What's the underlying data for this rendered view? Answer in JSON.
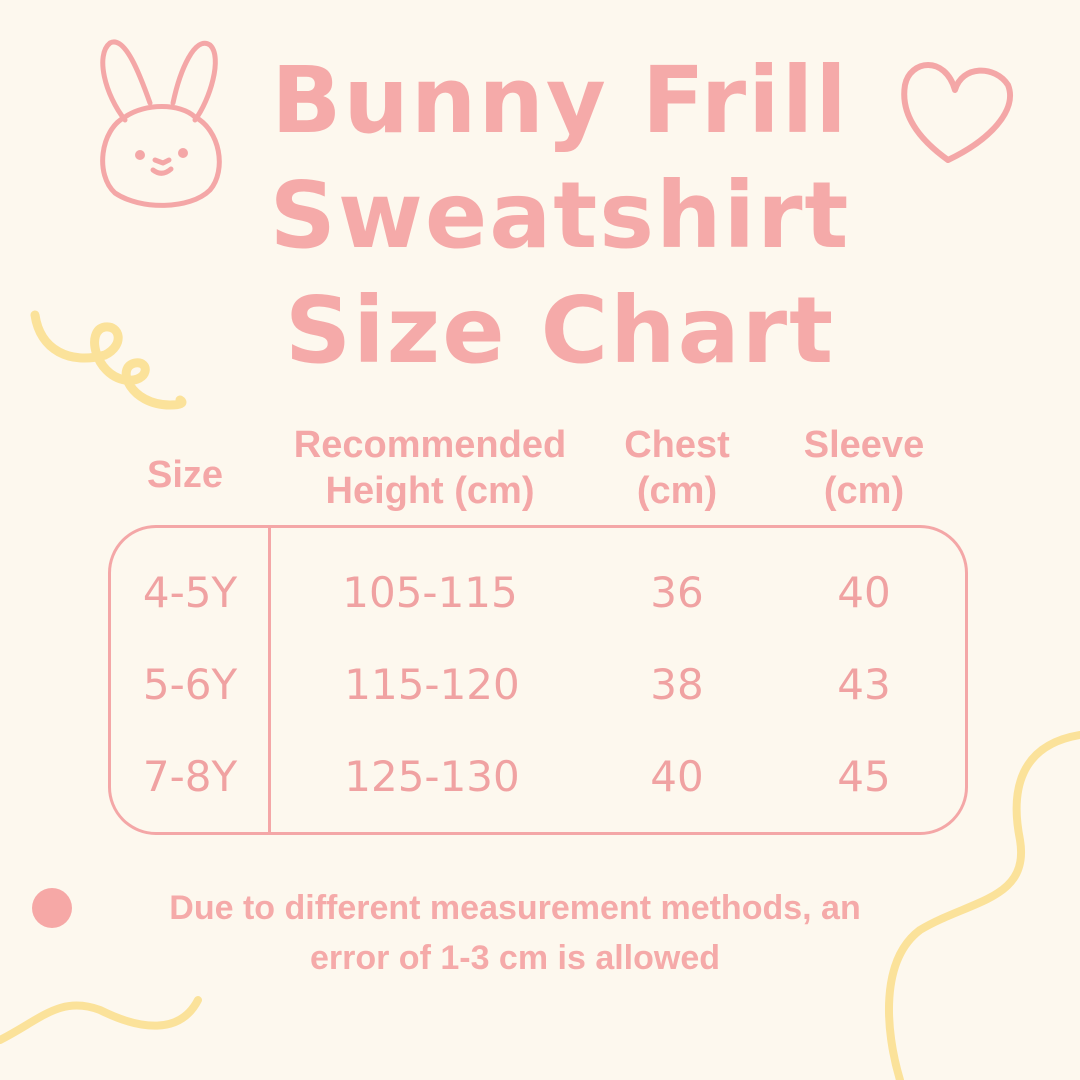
{
  "title": {
    "line1": "Bunny Frill",
    "line2": "Sweatshirt",
    "line3": "Size Chart"
  },
  "headers": {
    "size": "Size",
    "height_1": "Recommended",
    "height_2": "Height (cm)",
    "chest_1": "Chest",
    "chest_2": "(cm)",
    "sleeve_1": "Sleeve",
    "sleeve_2": "(cm)"
  },
  "rows": [
    {
      "size": "4-5Y",
      "height": "105-115",
      "chest": "36",
      "sleeve": "40"
    },
    {
      "size": "5-6Y",
      "height": "115-120",
      "chest": "38",
      "sleeve": "43"
    },
    {
      "size": "7-8Y",
      "height": "125-130",
      "chest": "40",
      "sleeve": "45"
    }
  ],
  "note": {
    "line1": "Due to different measurement methods, an",
    "line2": "error of 1-3 cm is allowed"
  },
  "colors": {
    "background": "#fdf8ee",
    "pink": "#f4a7a7",
    "yellow": "#fbe29a"
  },
  "icons": [
    "bunny-icon",
    "heart-icon",
    "squiggle-decoration",
    "dot-decoration"
  ]
}
